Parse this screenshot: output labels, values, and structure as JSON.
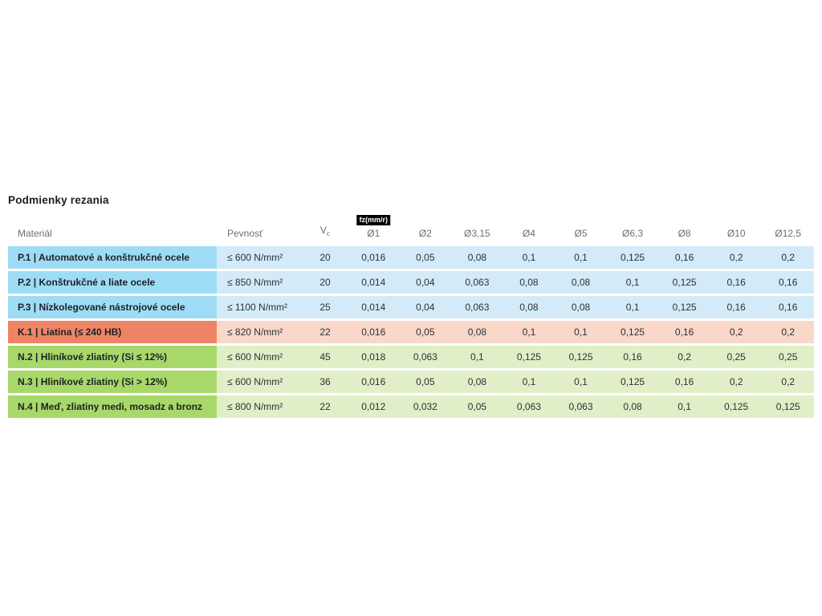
{
  "page": {
    "title": "Podmienky rezania"
  },
  "table": {
    "headers": {
      "material": "Materiál",
      "strength": "Pevnosť",
      "vc_label": "V",
      "vc_sub": "c",
      "fz_badge": "fz(mm/r)",
      "diameters": [
        "Ø1",
        "Ø2",
        "Ø3,15",
        "Ø4",
        "Ø5",
        "Ø6,3",
        "Ø8",
        "Ø10",
        "Ø12,5"
      ]
    },
    "colors": {
      "p_dark": "#9edcf5",
      "p_light": "#d3ebf8",
      "k_dark": "#ee8465",
      "k_light": "#f9d7c9",
      "n_dark": "#a9d86a",
      "n_light": "#e1efc8",
      "badge_bg": "#000000",
      "badge_text": "#ffffff"
    },
    "rows": [
      {
        "group": "P",
        "material": "P.1 | Automatové a konštrukčné ocele",
        "strength": "≤ 600 N/mm²",
        "vc": "20",
        "values": [
          "0,016",
          "0,05",
          "0,08",
          "0,1",
          "0,1",
          "0,125",
          "0,16",
          "0,2",
          "0,2"
        ]
      },
      {
        "group": "P",
        "material": "P.2 | Konštrukčné a liate ocele",
        "strength": "≤ 850 N/mm²",
        "vc": "20",
        "values": [
          "0,014",
          "0,04",
          "0,063",
          "0,08",
          "0,08",
          "0,1",
          "0,125",
          "0,16",
          "0,16"
        ]
      },
      {
        "group": "P",
        "material": "P.3 | Nízkolegované nástrojové ocele",
        "strength": "≤ 1100 N/mm²",
        "vc": "25",
        "values": [
          "0,014",
          "0,04",
          "0,063",
          "0,08",
          "0,08",
          "0,1",
          "0,125",
          "0,16",
          "0,16"
        ]
      },
      {
        "group": "K",
        "material": "K.1 | Liatina (≤ 240 HB)",
        "strength": "≤ 820 N/mm²",
        "vc": "22",
        "values": [
          "0,016",
          "0,05",
          "0,08",
          "0,1",
          "0,1",
          "0,125",
          "0,16",
          "0,2",
          "0,2"
        ]
      },
      {
        "group": "N",
        "material": "N.2 | Hliníkové zliatiny (Si ≤ 12%)",
        "strength": "≤ 600 N/mm²",
        "vc": "45",
        "values": [
          "0,018",
          "0,063",
          "0,1",
          "0,125",
          "0,125",
          "0,16",
          "0,2",
          "0,25",
          "0,25"
        ]
      },
      {
        "group": "N",
        "material": "N.3 | Hliníkové zliatiny (Si > 12%)",
        "strength": "≤ 600 N/mm²",
        "vc": "36",
        "values": [
          "0,016",
          "0,05",
          "0,08",
          "0,1",
          "0,1",
          "0,125",
          "0,16",
          "0,2",
          "0,2"
        ]
      },
      {
        "group": "N",
        "material": "N.4 | Meď, zliatiny medi, mosadz a bronz",
        "strength": "≤ 800 N/mm²",
        "vc": "22",
        "values": [
          "0,012",
          "0,032",
          "0,05",
          "0,063",
          "0,063",
          "0,08",
          "0,1",
          "0,125",
          "0,125"
        ]
      }
    ]
  }
}
